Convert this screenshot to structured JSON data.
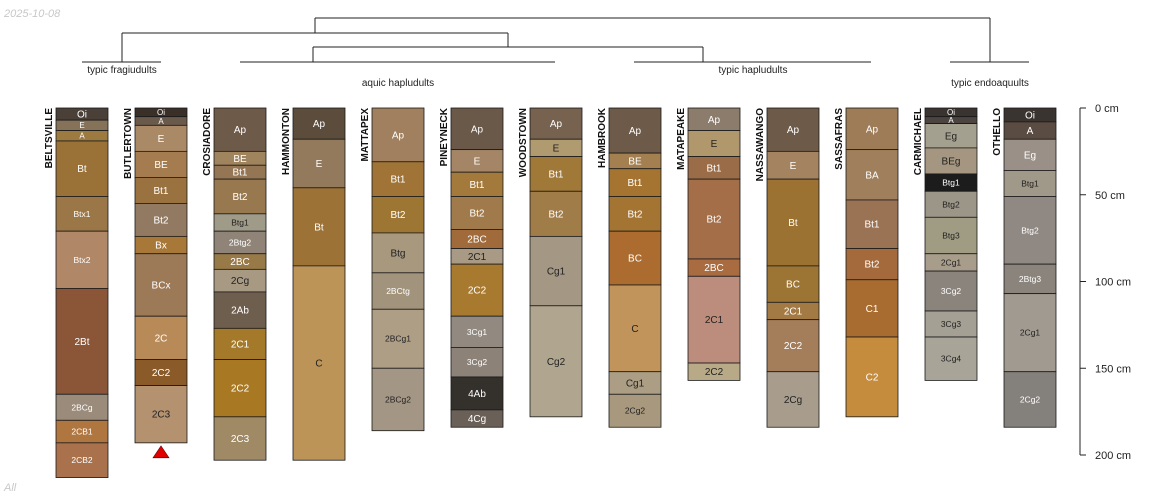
{
  "date_stamp": "2025-10-08",
  "footnote": "All",
  "groups": [
    {
      "label": "typic fragiudults"
    },
    {
      "label": "aquic hapludults"
    },
    {
      "label": "typic hapludults"
    },
    {
      "label": "typic endoaquults"
    }
  ],
  "depth_axis": {
    "unit": "cm",
    "max": 200,
    "ticks": [
      {
        "value": 0,
        "label": "0 cm"
      },
      {
        "value": 50,
        "label": "50 cm"
      },
      {
        "value": 100,
        "label": "100 cm"
      },
      {
        "value": 150,
        "label": "150 cm"
      },
      {
        "value": 200,
        "label": "200 cm"
      }
    ]
  },
  "profiles": [
    {
      "name": "BELTSVILLE",
      "horizons": [
        {
          "name": "Oi",
          "top": 0,
          "bottom": 7,
          "color": "#4a4038"
        },
        {
          "name": "E",
          "top": 7,
          "bottom": 13,
          "color": "#857258"
        },
        {
          "name": "A",
          "top": 13,
          "bottom": 19,
          "color": "#9c7a40"
        },
        {
          "name": "Bt",
          "top": 19,
          "bottom": 51,
          "color": "#9a7238"
        },
        {
          "name": "Btx1",
          "top": 51,
          "bottom": 71,
          "color": "#9b7646"
        },
        {
          "name": "Btx2",
          "top": 71,
          "bottom": 104,
          "color": "#b08868"
        },
        {
          "name": "2Bt",
          "top": 104,
          "bottom": 165,
          "color": "#8b5638"
        },
        {
          "name": "2BCg",
          "top": 165,
          "bottom": 180,
          "color": "#9a8b7b"
        },
        {
          "name": "2CB1",
          "top": 180,
          "bottom": 193,
          "color": "#b07640"
        },
        {
          "name": "2CB2",
          "top": 193,
          "bottom": 213,
          "color": "#a9724c"
        }
      ]
    },
    {
      "name": "BUTLERTOWN",
      "truncated": true,
      "horizons": [
        {
          "name": "Oi",
          "top": 0,
          "bottom": 5,
          "color": "#3a3028"
        },
        {
          "name": "A",
          "top": 5,
          "bottom": 10,
          "color": "#6a5a4c"
        },
        {
          "name": "E",
          "top": 10,
          "bottom": 25,
          "color": "#aa8a66"
        },
        {
          "name": "BE",
          "top": 25,
          "bottom": 40,
          "color": "#a47c50"
        },
        {
          "name": "Bt1",
          "top": 40,
          "bottom": 55,
          "color": "#9a7240"
        },
        {
          "name": "Bt2",
          "top": 55,
          "bottom": 74,
          "color": "#927a62"
        },
        {
          "name": "Bx",
          "top": 74,
          "bottom": 84,
          "color": "#a87838"
        },
        {
          "name": "BCx",
          "top": 84,
          "bottom": 120,
          "color": "#9c7a58"
        },
        {
          "name": "2C",
          "top": 120,
          "bottom": 145,
          "color": "#b88a58"
        },
        {
          "name": "2C2",
          "top": 145,
          "bottom": 160,
          "color": "#8a5a28"
        },
        {
          "name": "2C3",
          "top": 160,
          "bottom": 193,
          "color": "#b49270"
        }
      ]
    },
    {
      "name": "CROSIADORE",
      "horizons": [
        {
          "name": "Ap",
          "top": 0,
          "bottom": 25,
          "color": "#6e5a48"
        },
        {
          "name": "BE",
          "top": 25,
          "bottom": 33,
          "color": "#a0845e"
        },
        {
          "name": "Bt1",
          "top": 33,
          "bottom": 41,
          "color": "#947654"
        },
        {
          "name": "Bt2",
          "top": 41,
          "bottom": 61,
          "color": "#98784e"
        },
        {
          "name": "Btg1",
          "top": 61,
          "bottom": 71,
          "color": "#a09a88"
        },
        {
          "name": "2Btg2",
          "top": 71,
          "bottom": 84,
          "color": "#908478"
        },
        {
          "name": "2BC",
          "top": 84,
          "bottom": 93,
          "color": "#987a48"
        },
        {
          "name": "2Cg",
          "top": 93,
          "bottom": 106,
          "color": "#a89a82"
        },
        {
          "name": "2Ab",
          "top": 106,
          "bottom": 127,
          "color": "#6e5e4e"
        },
        {
          "name": "2C1",
          "top": 127,
          "bottom": 145,
          "color": "#a47a2a"
        },
        {
          "name": "2C2",
          "top": 145,
          "bottom": 178,
          "color": "#a87822"
        },
        {
          "name": "2C3",
          "top": 178,
          "bottom": 203,
          "color": "#a08a66"
        }
      ]
    },
    {
      "name": "HAMMONTON",
      "horizons": [
        {
          "name": "Ap",
          "top": 0,
          "bottom": 18,
          "color": "#5c4c3c"
        },
        {
          "name": "E",
          "top": 18,
          "bottom": 46,
          "color": "#947a5c"
        },
        {
          "name": "Bt",
          "top": 46,
          "bottom": 91,
          "color": "#9c7236"
        },
        {
          "name": "C",
          "top": 91,
          "bottom": 203,
          "color": "#bc9458"
        }
      ]
    },
    {
      "name": "MATTAPEX",
      "horizons": [
        {
          "name": "Ap",
          "top": 0,
          "bottom": 31,
          "color": "#a0805e"
        },
        {
          "name": "Bt1",
          "top": 31,
          "bottom": 51,
          "color": "#a07436"
        },
        {
          "name": "Bt2",
          "top": 51,
          "bottom": 72,
          "color": "#9e7634"
        },
        {
          "name": "Btg",
          "top": 72,
          "bottom": 95,
          "color": "#a8987e"
        },
        {
          "name": "2BCtg",
          "top": 95,
          "bottom": 116,
          "color": "#a2947c"
        },
        {
          "name": "2BCg1",
          "top": 116,
          "bottom": 150,
          "color": "#ae9e86"
        },
        {
          "name": "2BCg2",
          "top": 150,
          "bottom": 186,
          "color": "#a49684"
        }
      ]
    },
    {
      "name": "PINEYNECK",
      "horizons": [
        {
          "name": "Ap",
          "top": 0,
          "bottom": 24,
          "color": "#6a5848"
        },
        {
          "name": "E",
          "top": 24,
          "bottom": 37,
          "color": "#a48666"
        },
        {
          "name": "Bt1",
          "top": 37,
          "bottom": 51,
          "color": "#a47a3c"
        },
        {
          "name": "Bt2",
          "top": 51,
          "bottom": 70,
          "color": "#a07a4a"
        },
        {
          "name": "2BC",
          "top": 70,
          "bottom": 81,
          "color": "#a06a3a"
        },
        {
          "name": "2C1",
          "top": 81,
          "bottom": 90,
          "color": "#a89a84"
        },
        {
          "name": "2C2",
          "top": 90,
          "bottom": 120,
          "color": "#a87a30"
        },
        {
          "name": "3Cg1",
          "top": 120,
          "bottom": 138,
          "color": "#928a80"
        },
        {
          "name": "3Cg2",
          "top": 138,
          "bottom": 155,
          "color": "#8c8278"
        },
        {
          "name": "4Ab",
          "top": 155,
          "bottom": 174,
          "color": "#34302c"
        },
        {
          "name": "4Cg",
          "top": 174,
          "bottom": 184,
          "color": "#6a6058"
        }
      ]
    },
    {
      "name": "WOODSTOWN",
      "horizons": [
        {
          "name": "Ap",
          "top": 0,
          "bottom": 18,
          "color": "#76624e"
        },
        {
          "name": "E",
          "top": 18,
          "bottom": 28,
          "color": "#b09a70"
        },
        {
          "name": "Bt1",
          "top": 28,
          "bottom": 48,
          "color": "#a07838"
        },
        {
          "name": "Bt2",
          "top": 48,
          "bottom": 74,
          "color": "#a07c48"
        },
        {
          "name": "Cg1",
          "top": 74,
          "bottom": 114,
          "color": "#a49884"
        },
        {
          "name": "Cg2",
          "top": 114,
          "bottom": 178,
          "color": "#b0a690"
        }
      ]
    },
    {
      "name": "HAMBROOK",
      "horizons": [
        {
          "name": "Ap",
          "top": 0,
          "bottom": 26,
          "color": "#6e5a48"
        },
        {
          "name": "BE",
          "top": 26,
          "bottom": 35,
          "color": "#a48050"
        },
        {
          "name": "Bt1",
          "top": 35,
          "bottom": 51,
          "color": "#a47430"
        },
        {
          "name": "Bt2",
          "top": 51,
          "bottom": 71,
          "color": "#a47432"
        },
        {
          "name": "BC",
          "top": 71,
          "bottom": 102,
          "color": "#ac6c30"
        },
        {
          "name": "C",
          "top": 102,
          "bottom": 152,
          "color": "#c0945a"
        },
        {
          "name": "Cg1",
          "top": 152,
          "bottom": 165,
          "color": "#ac9e84"
        },
        {
          "name": "2Cg2",
          "top": 165,
          "bottom": 184,
          "color": "#a8987e"
        }
      ]
    },
    {
      "name": "MATAPEAKE",
      "horizons": [
        {
          "name": "Ap",
          "top": 0,
          "bottom": 13,
          "color": "#8c7c6c"
        },
        {
          "name": "E",
          "top": 13,
          "bottom": 28,
          "color": "#b0986c"
        },
        {
          "name": "Bt1",
          "top": 28,
          "bottom": 41,
          "color": "#9a6c48"
        },
        {
          "name": "Bt2",
          "top": 41,
          "bottom": 87,
          "color": "#a46e48"
        },
        {
          "name": "2BC",
          "top": 87,
          "bottom": 97,
          "color": "#a86c40"
        },
        {
          "name": "2C1",
          "top": 97,
          "bottom": 147,
          "color": "#bc8c7c"
        },
        {
          "name": "2C2",
          "top": 147,
          "bottom": 157,
          "color": "#b8aa86"
        }
      ]
    },
    {
      "name": "NASSAWANGO",
      "horizons": [
        {
          "name": "Ap",
          "top": 0,
          "bottom": 25,
          "color": "#6e5a48"
        },
        {
          "name": "E",
          "top": 25,
          "bottom": 41,
          "color": "#a48460"
        },
        {
          "name": "Bt",
          "top": 41,
          "bottom": 91,
          "color": "#9c7232"
        },
        {
          "name": "BC",
          "top": 91,
          "bottom": 112,
          "color": "#9c7434"
        },
        {
          "name": "2C1",
          "top": 112,
          "bottom": 122,
          "color": "#a47a44"
        },
        {
          "name": "2C2",
          "top": 122,
          "bottom": 152,
          "color": "#a47e5a"
        },
        {
          "name": "2Cg",
          "top": 152,
          "bottom": 184,
          "color": "#a89c8c"
        }
      ]
    },
    {
      "name": "SASSAFRAS",
      "horizons": [
        {
          "name": "Ap",
          "top": 0,
          "bottom": 24,
          "color": "#9e7c58"
        },
        {
          "name": "BA",
          "top": 24,
          "bottom": 53,
          "color": "#a0805c"
        },
        {
          "name": "Bt1",
          "top": 53,
          "bottom": 81,
          "color": "#9a7254"
        },
        {
          "name": "Bt2",
          "top": 81,
          "bottom": 99,
          "color": "#a46a3c"
        },
        {
          "name": "C1",
          "top": 99,
          "bottom": 132,
          "color": "#a86c30"
        },
        {
          "name": "C2",
          "top": 132,
          "bottom": 178,
          "color": "#c48c3c"
        }
      ]
    },
    {
      "name": "CARMICHAEL",
      "horizons": [
        {
          "name": "Oi",
          "top": 0,
          "bottom": 5,
          "color": "#3a3430"
        },
        {
          "name": "A",
          "top": 5,
          "bottom": 9,
          "color": "#4c4440"
        },
        {
          "name": "Eg",
          "top": 9,
          "bottom": 23,
          "color": "#a4a090"
        },
        {
          "name": "BEg",
          "top": 23,
          "bottom": 38,
          "color": "#a49680"
        },
        {
          "name": "Btg1",
          "top": 38,
          "bottom": 48,
          "color": "#1c1c1c"
        },
        {
          "name": "Btg2",
          "top": 48,
          "bottom": 63,
          "color": "#9c9688"
        },
        {
          "name": "Btg3",
          "top": 63,
          "bottom": 84,
          "color": "#a09c84"
        },
        {
          "name": "2Cg1",
          "top": 84,
          "bottom": 94,
          "color": "#a89c8a"
        },
        {
          "name": "3Cg2",
          "top": 94,
          "bottom": 117,
          "color": "#8a847c"
        },
        {
          "name": "3Cg3",
          "top": 117,
          "bottom": 132,
          "color": "#a4a094"
        },
        {
          "name": "3Cg4",
          "top": 132,
          "bottom": 157,
          "color": "#a8a498"
        }
      ]
    },
    {
      "name": "OTHELLO",
      "horizons": [
        {
          "name": "Oi",
          "top": 0,
          "bottom": 8,
          "color": "#3a3430"
        },
        {
          "name": "A",
          "top": 8,
          "bottom": 18,
          "color": "#5a4c42"
        },
        {
          "name": "Eg",
          "top": 18,
          "bottom": 36,
          "color": "#9a9088"
        },
        {
          "name": "Btg1",
          "top": 36,
          "bottom": 51,
          "color": "#a09888"
        },
        {
          "name": "Btg2",
          "top": 51,
          "bottom": 90,
          "color": "#908882"
        },
        {
          "name": "2Btg3",
          "top": 90,
          "bottom": 107,
          "color": "#8a847c"
        },
        {
          "name": "2Cg1",
          "top": 107,
          "bottom": 152,
          "color": "#a09a90"
        },
        {
          "name": "2Cg2",
          "top": 152,
          "bottom": 184,
          "color": "#84807c"
        }
      ]
    }
  ]
}
